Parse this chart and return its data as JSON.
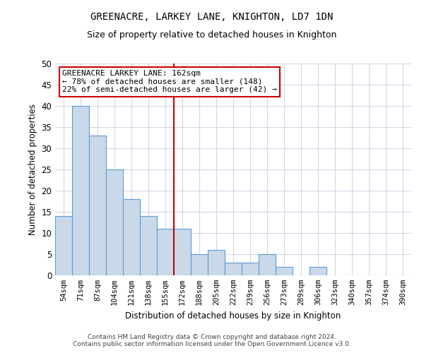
{
  "title": "GREENACRE, LARKEY LANE, KNIGHTON, LD7 1DN",
  "subtitle": "Size of property relative to detached houses in Knighton",
  "xlabel": "Distribution of detached houses by size in Knighton",
  "ylabel": "Number of detached properties",
  "categories": [
    "54sqm",
    "71sqm",
    "87sqm",
    "104sqm",
    "121sqm",
    "138sqm",
    "155sqm",
    "172sqm",
    "188sqm",
    "205sqm",
    "222sqm",
    "239sqm",
    "256sqm",
    "273sqm",
    "289sqm",
    "306sqm",
    "323sqm",
    "340sqm",
    "357sqm",
    "374sqm",
    "390sqm"
  ],
  "values": [
    14,
    40,
    33,
    25,
    18,
    14,
    11,
    11,
    5,
    6,
    3,
    3,
    5,
    2,
    0,
    2,
    0,
    0,
    0,
    0,
    0
  ],
  "bar_color": "#c9d9ea",
  "bar_edge_color": "#5b9bd5",
  "background_color": "#ffffff",
  "grid_color": "#d0d8e8",
  "ylim": [
    0,
    50
  ],
  "yticks": [
    0,
    5,
    10,
    15,
    20,
    25,
    30,
    35,
    40,
    45,
    50
  ],
  "property_label": "GREENACRE LARKEY LANE: 162sqm",
  "annotation_line1": "← 78% of detached houses are smaller (148)",
  "annotation_line2": "22% of semi-detached houses are larger (42) →",
  "annotation_box_color": "#ffffff",
  "annotation_box_edge": "#cc0000",
  "vertical_line_color": "#cc0000",
  "vertical_line_x": 6.5,
  "footer_line1": "Contains HM Land Registry data © Crown copyright and database right 2024.",
  "footer_line2": "Contains public sector information licensed under the Open Government Licence v3.0."
}
